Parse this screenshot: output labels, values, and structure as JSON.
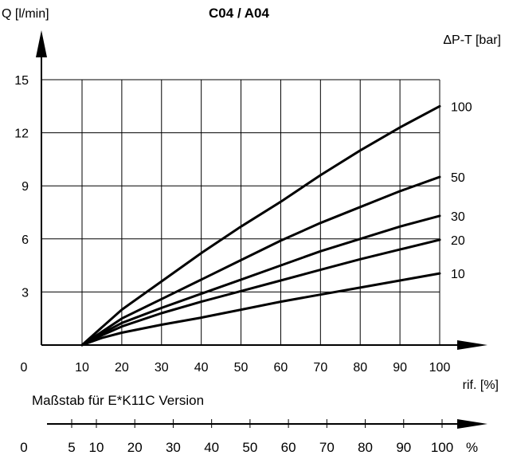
{
  "chart_data": {
    "type": "line",
    "title": "C04 / A04",
    "ylabel": "Q [l/min]",
    "xlabel": "rif. [%]",
    "legend_title": "ΔP-T [bar]",
    "legend_placement": "right",
    "grid": true,
    "xlim": [
      0,
      100
    ],
    "ylim": [
      0,
      15
    ],
    "x_ticks": [
      "0",
      "10",
      "20",
      "30",
      "40",
      "50",
      "60",
      "70",
      "80",
      "90",
      "100"
    ],
    "y_ticks": [
      "3",
      "6",
      "9",
      "12",
      "15"
    ],
    "series": [
      {
        "name": "100",
        "x": [
          10,
          15,
          20,
          30,
          40,
          50,
          60,
          70,
          80,
          90,
          100
        ],
        "y": [
          0,
          1.0,
          2.0,
          3.6,
          5.2,
          6.7,
          8.1,
          9.6,
          11.0,
          12.3,
          13.5
        ]
      },
      {
        "name": "50",
        "x": [
          10,
          15,
          20,
          30,
          40,
          50,
          60,
          70,
          80,
          90,
          100
        ],
        "y": [
          0,
          0.75,
          1.5,
          2.6,
          3.7,
          4.8,
          5.9,
          6.9,
          7.8,
          8.7,
          9.5
        ]
      },
      {
        "name": "30",
        "x": [
          10,
          15,
          20,
          30,
          40,
          50,
          60,
          70,
          80,
          90,
          100
        ],
        "y": [
          0,
          0.65,
          1.25,
          2.1,
          2.9,
          3.7,
          4.5,
          5.3,
          6.0,
          6.7,
          7.3
        ]
      },
      {
        "name": "20",
        "x": [
          10,
          15,
          20,
          30,
          40,
          50,
          60,
          70,
          80,
          90,
          100
        ],
        "y": [
          0,
          0.55,
          1.05,
          1.8,
          2.45,
          3.05,
          3.65,
          4.25,
          4.85,
          5.4,
          5.95
        ]
      },
      {
        "name": "10",
        "x": [
          10,
          15,
          20,
          30,
          40,
          50,
          60,
          70,
          80,
          90,
          100
        ],
        "y": [
          0,
          0.4,
          0.7,
          1.15,
          1.55,
          2.0,
          2.45,
          2.85,
          3.25,
          3.65,
          4.05
        ]
      }
    ]
  },
  "scale_axis": {
    "caption": "Maßstab für E*K11C Version",
    "ticks": [
      {
        "value": 0,
        "label": "0"
      },
      {
        "value": 5,
        "label": "5"
      },
      {
        "value": 10,
        "label": "10"
      },
      {
        "value": 20,
        "label": "20"
      },
      {
        "value": 30,
        "label": "30"
      },
      {
        "value": 40,
        "label": "40"
      },
      {
        "value": 50,
        "label": "50"
      },
      {
        "value": 60,
        "label": "60"
      },
      {
        "value": 70,
        "label": "70"
      },
      {
        "value": 80,
        "label": "80"
      },
      {
        "value": 90,
        "label": "90"
      },
      {
        "value": 100,
        "label": "100"
      }
    ],
    "unit": "%"
  }
}
